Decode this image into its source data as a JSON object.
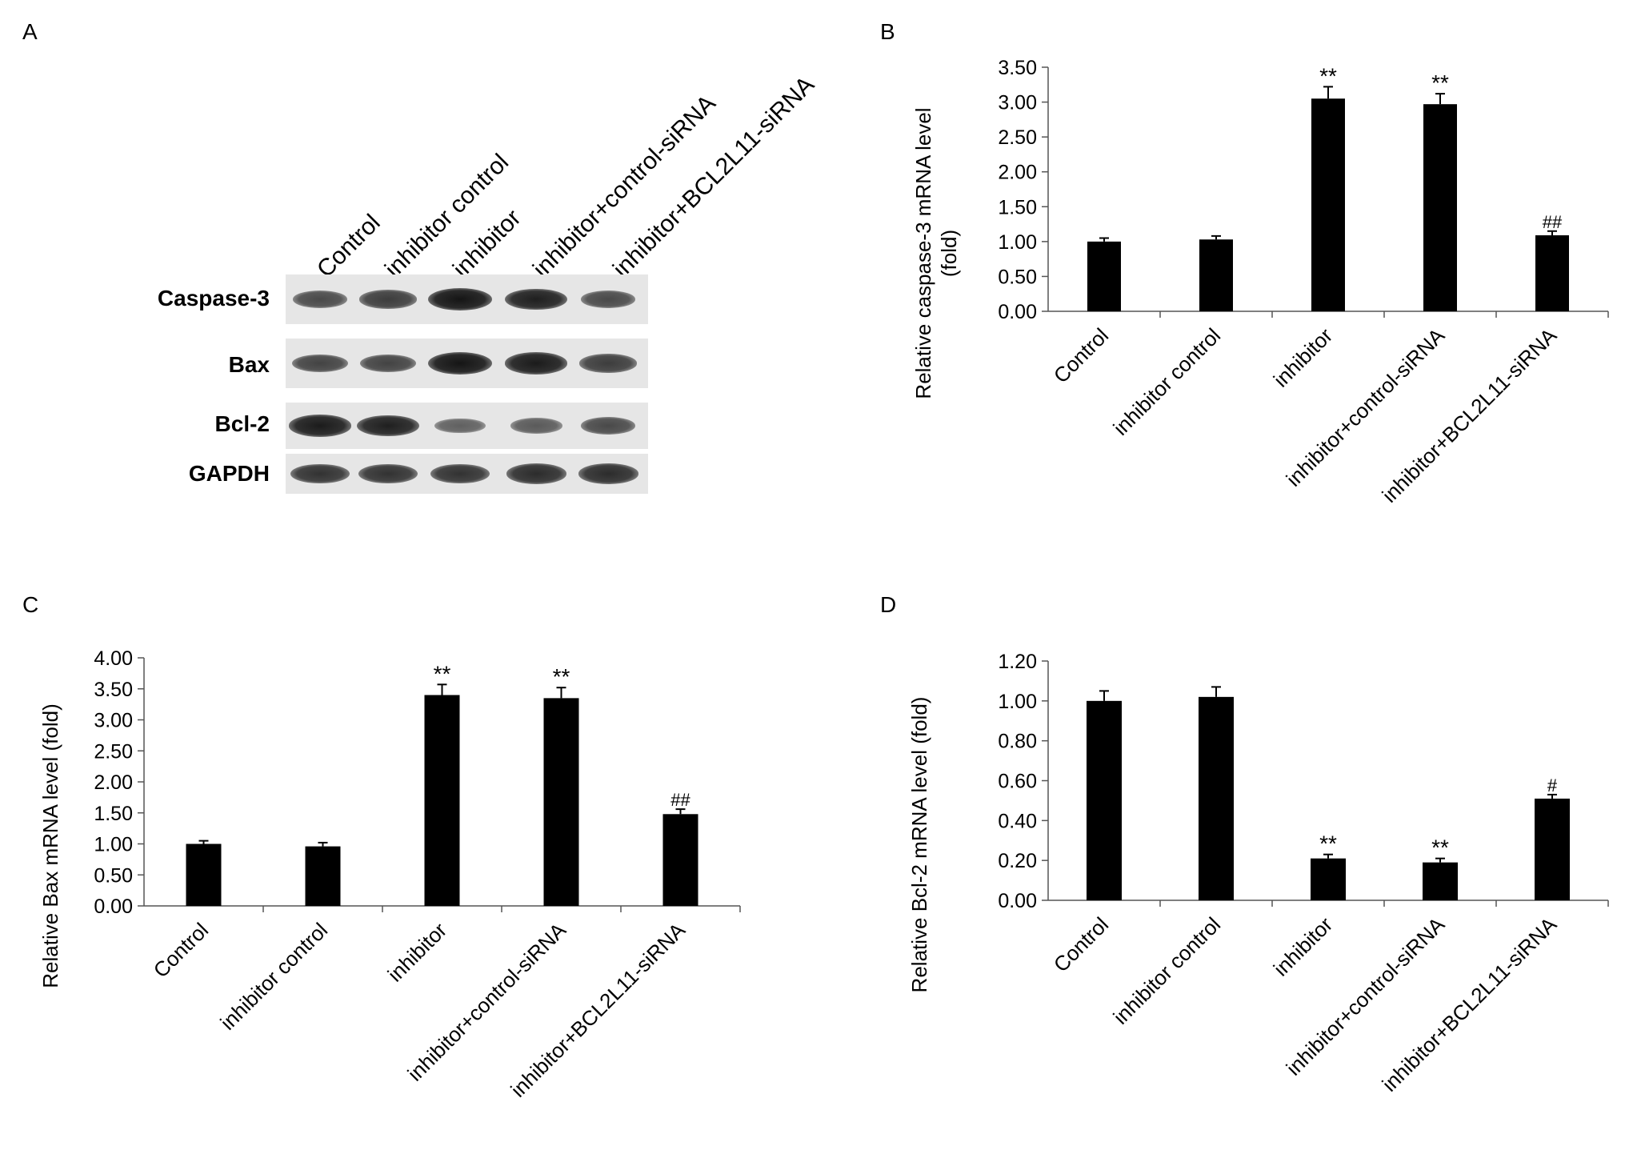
{
  "panels": {
    "A": "A",
    "B": "B",
    "C": "C",
    "D": "D"
  },
  "western_blot": {
    "lanes": [
      "Control",
      "inhibitor control",
      "inhibitor",
      "inhibitor+control-siRNA",
      "inhibitor+BCL2L11-siRNA"
    ],
    "rows": [
      {
        "label": "Caspase-3",
        "intensity": [
          0.55,
          0.65,
          1.0,
          0.9,
          0.55
        ]
      },
      {
        "label": "Bax",
        "intensity": [
          0.6,
          0.6,
          1.0,
          0.95,
          0.65
        ]
      },
      {
        "label": "Bcl-2",
        "intensity": [
          0.95,
          0.9,
          0.35,
          0.4,
          0.55
        ]
      },
      {
        "label": "GAPDH",
        "intensity": [
          0.75,
          0.75,
          0.75,
          0.8,
          0.8
        ]
      }
    ]
  },
  "chart_data": [
    {
      "type": "bar",
      "panel": "B",
      "categories": [
        "Control",
        "inhibitor control",
        "inhibitor",
        "inhibitor+control-siRNA",
        "inhibitor+BCL2L11-siRNA"
      ],
      "values": [
        1.0,
        1.03,
        3.05,
        2.97,
        1.09
      ],
      "errors": [
        0.05,
        0.05,
        0.17,
        0.15,
        0.06
      ],
      "annotations": [
        "",
        "",
        "**",
        "**",
        "##"
      ],
      "ylabel": [
        "Relative caspase-3 mRNA level",
        "(fold)"
      ],
      "ylim": [
        0,
        3.5
      ],
      "yticks": [
        "0.00",
        "0.50",
        "1.00",
        "1.50",
        "2.00",
        "2.50",
        "3.00",
        "3.50"
      ],
      "grid": false
    },
    {
      "type": "bar",
      "panel": "C",
      "categories": [
        "Control",
        "inhibitor control",
        "inhibitor",
        "inhibitor+control-siRNA",
        "inhibitor+BCL2L11-siRNA"
      ],
      "values": [
        1.0,
        0.96,
        3.4,
        3.35,
        1.48
      ],
      "errors": [
        0.05,
        0.06,
        0.17,
        0.17,
        0.08
      ],
      "annotations": [
        "",
        "",
        "**",
        "**",
        "##"
      ],
      "ylabel": [
        "Relative Bax mRNA level (fold)"
      ],
      "ylim": [
        0,
        4.0
      ],
      "yticks": [
        "0.00",
        "0.50",
        "1.00",
        "1.50",
        "2.00",
        "2.50",
        "3.00",
        "3.50",
        "4.00"
      ],
      "grid": false
    },
    {
      "type": "bar",
      "panel": "D",
      "categories": [
        "Control",
        "inhibitor control",
        "inhibitor",
        "inhibitor+control-siRNA",
        "inhibitor+BCL2L11-siRNA"
      ],
      "values": [
        1.0,
        1.02,
        0.21,
        0.19,
        0.51
      ],
      "errors": [
        0.05,
        0.05,
        0.02,
        0.02,
        0.02
      ],
      "annotations": [
        "",
        "",
        "**",
        "**",
        "#"
      ],
      "ylabel": [
        "Relative Bcl-2 mRNA level (fold)"
      ],
      "ylim": [
        0,
        1.2
      ],
      "yticks": [
        "0.00",
        "0.20",
        "0.40",
        "0.60",
        "0.80",
        "1.00",
        "1.20"
      ],
      "grid": false
    }
  ]
}
